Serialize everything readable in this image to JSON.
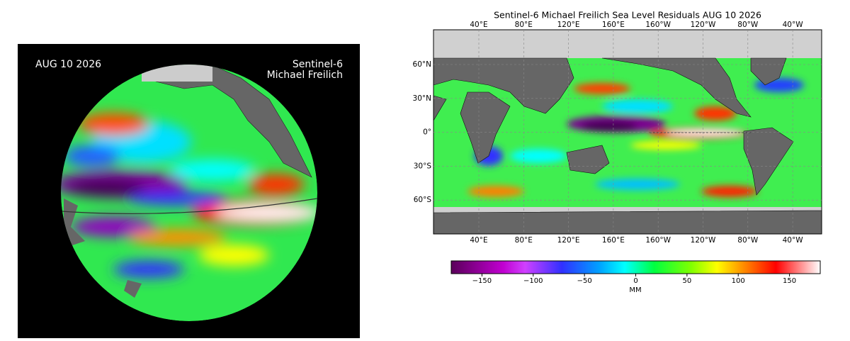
{
  "left_panel": {
    "date": "AUG 10 2026",
    "mission": [
      "Sentinel-6",
      "Michael Freilich"
    ]
  },
  "map": {
    "title": "Sentinel-6 Michael Freilich Sea Level Residuals AUG 10 2026",
    "lon_labels": [
      "40°E",
      "80°E",
      "120°E",
      "160°E",
      "160°W",
      "120°W",
      "80°W",
      "40°W"
    ],
    "lat_labels": [
      "60°N",
      "30°N",
      "0°",
      "30°S",
      "60°S"
    ]
  },
  "colorbar": {
    "label": "MM",
    "lim": [
      -180,
      180
    ],
    "ticks": [
      {
        "value": -150,
        "label": "−150"
      },
      {
        "value": -100,
        "label": "−100"
      },
      {
        "value": -50,
        "label": "−50"
      },
      0,
      50,
      100,
      150
    ]
  }
}
